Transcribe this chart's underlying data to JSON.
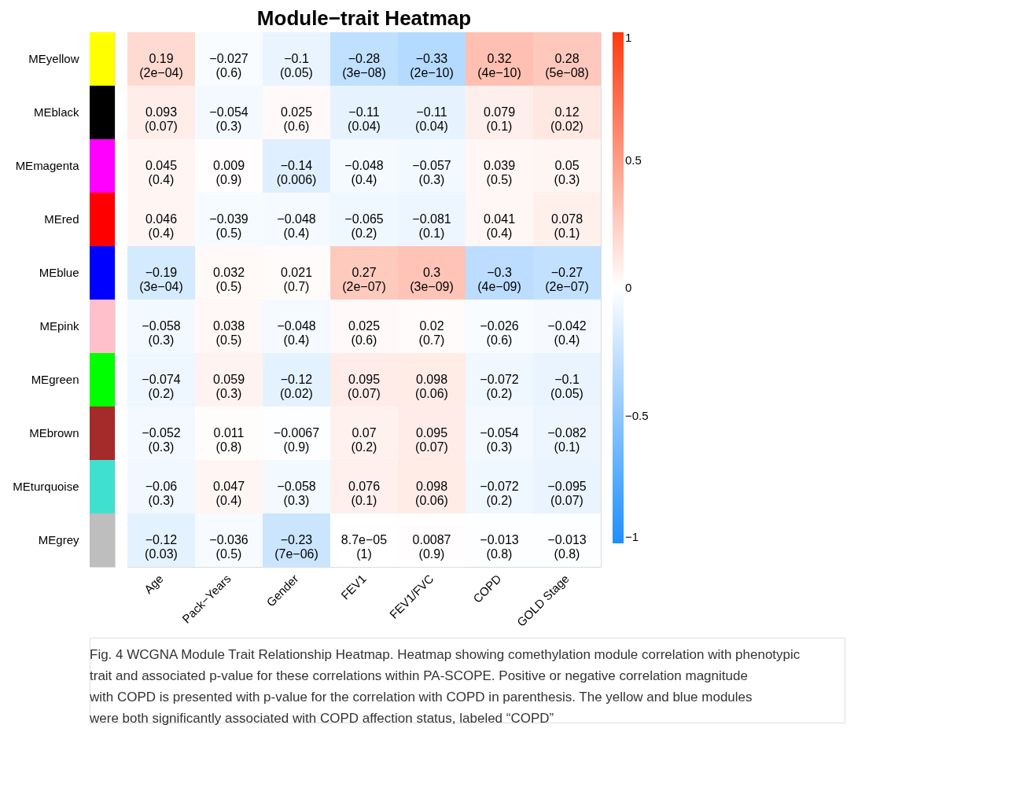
{
  "chart_data": {
    "type": "heatmap",
    "title": "Module−trait Heatmap",
    "categories": [
      "Age",
      "Pack−Years",
      "Gender",
      "FEV1",
      "FEV1/FVC",
      "COPD",
      "GOLD Stage"
    ],
    "y_categories": [
      "MEyellow",
      "MEblack",
      "MEmagenta",
      "MEred",
      "MEblue",
      "MEpink",
      "MEgreen",
      "MEbrown",
      "MEturquoise",
      "MEgrey"
    ],
    "colors": [
      "#ffff00",
      "#000000",
      "#ff00ff",
      "#ff0000",
      "#0000ff",
      "#ffc0cb",
      "#00ff00",
      "#a52a2a",
      "#40e0d0",
      "#bebebe"
    ],
    "cells": [
      [
        0.19,
        -0.027,
        -0.1,
        -0.28,
        -0.33,
        0.32,
        0.28
      ],
      [
        0.093,
        -0.054,
        0.025,
        -0.11,
        -0.11,
        0.079,
        0.12
      ],
      [
        0.045,
        0.009,
        -0.14,
        -0.048,
        -0.057,
        0.039,
        0.05
      ],
      [
        0.046,
        -0.039,
        -0.048,
        -0.065,
        -0.081,
        0.041,
        0.078
      ],
      [
        -0.19,
        0.032,
        0.021,
        0.27,
        0.3,
        -0.3,
        -0.27
      ],
      [
        -0.058,
        0.038,
        -0.048,
        0.025,
        0.02,
        -0.026,
        -0.042
      ],
      [
        -0.074,
        0.059,
        -0.12,
        0.095,
        0.098,
        -0.072,
        -0.1
      ],
      [
        -0.052,
        0.011,
        -0.0067,
        0.07,
        0.095,
        -0.054,
        -0.082
      ],
      [
        -0.06,
        0.047,
        -0.058,
        0.076,
        0.098,
        -0.072,
        -0.095
      ],
      [
        -0.12,
        -0.036,
        -0.23,
        8.7e-05,
        0.0087,
        -0.013,
        -0.013
      ]
    ],
    "cell_labels": [
      [
        "0.19\n(2e−04)",
        "−0.027\n(0.6)",
        "−0.1\n(0.05)",
        "−0.28\n(3e−08)",
        "−0.33\n(2e−10)",
        "0.32\n(4e−10)",
        "0.28\n(5e−08)"
      ],
      [
        "0.093\n(0.07)",
        "−0.054\n(0.3)",
        "0.025\n(0.6)",
        "−0.11\n(0.04)",
        "−0.11\n(0.04)",
        "0.079\n(0.1)",
        "0.12\n(0.02)"
      ],
      [
        "0.045\n(0.4)",
        "0.009\n(0.9)",
        "−0.14\n(0.006)",
        "−0.048\n(0.4)",
        "−0.057\n(0.3)",
        "0.039\n(0.5)",
        "0.05\n(0.3)"
      ],
      [
        "0.046\n(0.4)",
        "−0.039\n(0.5)",
        "−0.048\n(0.4)",
        "−0.065\n(0.2)",
        "−0.081\n(0.1)",
        "0.041\n(0.4)",
        "0.078\n(0.1)"
      ],
      [
        "−0.19\n(3e−04)",
        "0.032\n(0.5)",
        "0.021\n(0.7)",
        "0.27\n(2e−07)",
        "0.3\n(3e−09)",
        "−0.3\n(4e−09)",
        "−0.27\n(2e−07)"
      ],
      [
        "−0.058\n(0.3)",
        "0.038\n(0.5)",
        "−0.048\n(0.4)",
        "0.025\n(0.6)",
        "0.02\n(0.7)",
        "−0.026\n(0.6)",
        "−0.042\n(0.4)"
      ],
      [
        "−0.074\n(0.2)",
        "0.059\n(0.3)",
        "−0.12\n(0.02)",
        "0.095\n(0.07)",
        "0.098\n(0.06)",
        "−0.072\n(0.2)",
        "−0.1\n(0.05)"
      ],
      [
        "−0.052\n(0.3)",
        "0.011\n(0.8)",
        "−0.0067\n(0.9)",
        "0.07\n(0.2)",
        "0.095\n(0.07)",
        "−0.054\n(0.3)",
        "−0.082\n(0.1)"
      ],
      [
        "−0.06\n(0.3)",
        "0.047\n(0.4)",
        "−0.058\n(0.3)",
        "0.076\n(0.1)",
        "0.098\n(0.06)",
        "−0.072\n(0.2)",
        "−0.095\n(0.07)"
      ],
      [
        "−0.12\n(0.03)",
        "−0.036\n(0.5)",
        "−0.23\n(7e−06)",
        "8.7e−05\n(1)",
        "0.0087\n(0.9)",
        "−0.013\n(0.8)",
        "−0.013\n(0.8)"
      ]
    ],
    "clim": [
      -1,
      1
    ],
    "cticks": [
      {
        "value": -1,
        "label": "−1"
      },
      {
        "value": -0.5,
        "label": "−0.5"
      },
      0,
      0.5,
      1
    ],
    "annotations": [
      "Fig. 4 WCGNA Module Trait Relationship Heatmap. Heatmap showing comethylation module correlation with phenotypic trait and associated p-value for these correlations within PA-SCOPE. Positive or negative correlation magnitude with COPD is presented with p-value for the correlation with COPD in parenthesis. The yellow and blue modules were both significantly associated with COPD affection status, labeled “COPD”"
    ]
  }
}
